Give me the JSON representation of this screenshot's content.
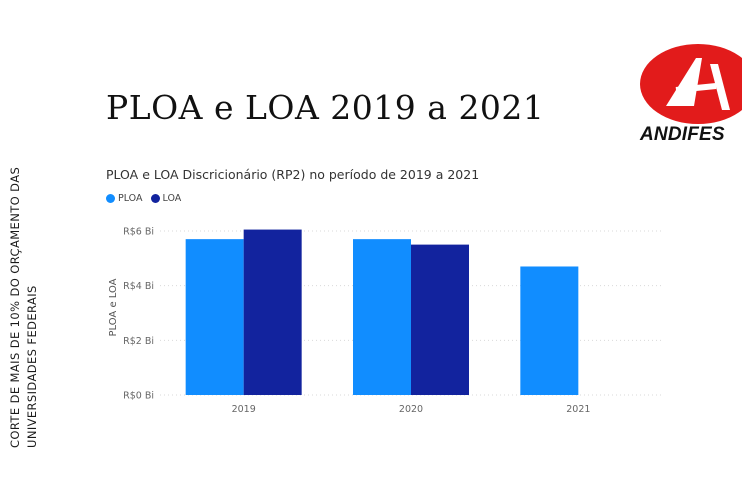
{
  "side_text": {
    "line1": "CORTE DE MAIS DE 10% DO ORÇAMENTO DAS",
    "line2": "UNIVERSIDADES FEDERAIS"
  },
  "slide_title": "PLOA e LOA 2019 a 2021",
  "logo": {
    "text": "ANDIFES",
    "color": "#e21b1b"
  },
  "chart_data": {
    "type": "bar",
    "title": "PLOA e LOA Discricionário (RP2) no período de 2019 a 2021",
    "xlabel": "",
    "ylabel": "PLOA e LOA",
    "categories": [
      "2019",
      "2020",
      "2021"
    ],
    "series": [
      {
        "name": "PLOA",
        "color": "#118dff",
        "values": [
          5.7,
          5.7,
          4.7
        ]
      },
      {
        "name": "LOA",
        "color": "#12239e",
        "values": [
          6.05,
          5.5,
          null
        ]
      }
    ],
    "ylim": [
      0,
      6.4
    ],
    "yticks": [
      {
        "value": 0,
        "label": "R$0 Bi"
      },
      {
        "value": 2,
        "label": "R$2 Bi"
      },
      {
        "value": 4,
        "label": "R$4 Bi"
      },
      {
        "value": 6,
        "label": "R$6 Bi"
      }
    ],
    "grid": true,
    "legend_position": "top-left"
  }
}
